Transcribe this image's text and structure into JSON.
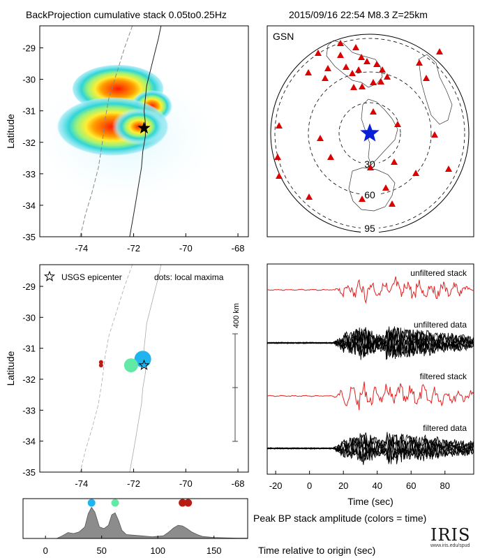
{
  "header": {
    "title": "BackProjection cumulative stack 0.05to0.25Hz",
    "event": "2015/09/16 22:54   M8.3  Z=25km"
  },
  "colors": {
    "station": "#dd0000",
    "epicenter_star": "#0b1fd6",
    "stack_trace": "#e02020",
    "data_trace": "#000000",
    "max_early": "#1fb4ee",
    "max_mid": "#62e9a6",
    "max_late": "#b81d14",
    "peak_fill": "#8c8c8c"
  },
  "chart_data": [
    {
      "type": "heatmap",
      "panel": "cumulative-stack-map",
      "xlabel": "",
      "ylabel": "Latitude",
      "xlim": [
        -75.6,
        -67.6
      ],
      "ylim": [
        -35,
        -28.3
      ],
      "xticks": [
        -74,
        -72,
        -70,
        -68
      ],
      "yticks": [
        -29,
        -30,
        -31,
        -32,
        -33,
        -34,
        -35
      ],
      "epicenter": {
        "lon": -71.6,
        "lat": -31.55
      },
      "blobs": [
        {
          "lon": -72.6,
          "lat": -30.3,
          "rx": 1.1,
          "ry": 0.45,
          "level": 0.55
        },
        {
          "lon": -71.3,
          "lat": -30.85,
          "rx": 0.5,
          "ry": 0.3,
          "level": 0.7
        },
        {
          "lon": -72.8,
          "lat": -31.5,
          "rx": 1.35,
          "ry": 0.55,
          "level": 0.6
        },
        {
          "lon": -71.8,
          "lat": -31.5,
          "rx": 0.65,
          "ry": 0.35,
          "level": 0.95
        }
      ]
    },
    {
      "type": "scatter",
      "panel": "station-map",
      "network_label": "GSN",
      "ring_labels": [
        "30",
        "60",
        "95"
      ],
      "rings_deg": [
        30,
        60,
        95
      ]
    },
    {
      "type": "scatter",
      "panel": "local-maxima-map",
      "ylabel": "Latitude",
      "legend_star": "USGS epicenter",
      "legend_dots": "dots: local maxima",
      "scale_label": "400 km",
      "xlim": [
        -75.6,
        -67.6
      ],
      "ylim": [
        -35,
        -28.3
      ],
      "xticks": [
        -74,
        -72,
        -70,
        -68
      ],
      "yticks": [
        -29,
        -30,
        -31,
        -32,
        -33,
        -34,
        -35
      ],
      "epicenter": {
        "lon": -71.6,
        "lat": -31.55
      },
      "maxima": [
        {
          "lon": -71.65,
          "lat": -31.35,
          "size": 12,
          "color": "#1fb4ee"
        },
        {
          "lon": -72.1,
          "lat": -31.55,
          "size": 10,
          "color": "#62e9a6"
        },
        {
          "lon": -73.25,
          "lat": -31.45,
          "size": 3,
          "color": "#b81d14"
        },
        {
          "lon": -73.25,
          "lat": -31.55,
          "size": 3,
          "color": "#b81d14"
        }
      ]
    },
    {
      "type": "line",
      "panel": "waveforms",
      "xlabel": "Time (sec)",
      "xlim": [
        -25,
        97
      ],
      "xticks": [
        -20,
        0,
        20,
        40,
        60,
        80
      ],
      "series": [
        {
          "name": "unfiltered stack"
        },
        {
          "name": "unfiltered data"
        },
        {
          "name": "filtered stack"
        },
        {
          "name": "filtered data"
        }
      ]
    },
    {
      "type": "area",
      "panel": "peak-amplitude",
      "xlabel": "Time relative to origin (sec)",
      "title": "Peak BP stack amplitude (colors = time)",
      "xlim": [
        -20,
        180
      ],
      "xticks": [
        0,
        50,
        100,
        150
      ],
      "x": [
        -20,
        0,
        10,
        15,
        20,
        25,
        30,
        35,
        38,
        41,
        44,
        48,
        52,
        56,
        59,
        62,
        65,
        68,
        72,
        78,
        85,
        95,
        105,
        110,
        114,
        118,
        122,
        126,
        130,
        135,
        140,
        150,
        160,
        170,
        180
      ],
      "values": [
        0,
        0,
        0,
        0.08,
        0.18,
        0.15,
        0.2,
        0.35,
        0.75,
        0.95,
        0.8,
        0.35,
        0.3,
        0.4,
        0.72,
        0.78,
        0.55,
        0.25,
        0.12,
        0.1,
        0.08,
        0.05,
        0.08,
        0.2,
        0.32,
        0.4,
        0.38,
        0.3,
        0.2,
        0.12,
        0.06,
        0.03,
        0.02,
        0.01,
        0.01
      ],
      "markers": [
        {
          "t": 41,
          "color": "#1fb4ee"
        },
        {
          "t": 62,
          "color": "#62e9a6"
        },
        {
          "t": 122,
          "color": "#b81d14"
        },
        {
          "t": 127,
          "color": "#b81d14"
        }
      ]
    }
  ],
  "logo": {
    "name": "IRIS",
    "url_text": "www.iris.edu/spud"
  }
}
